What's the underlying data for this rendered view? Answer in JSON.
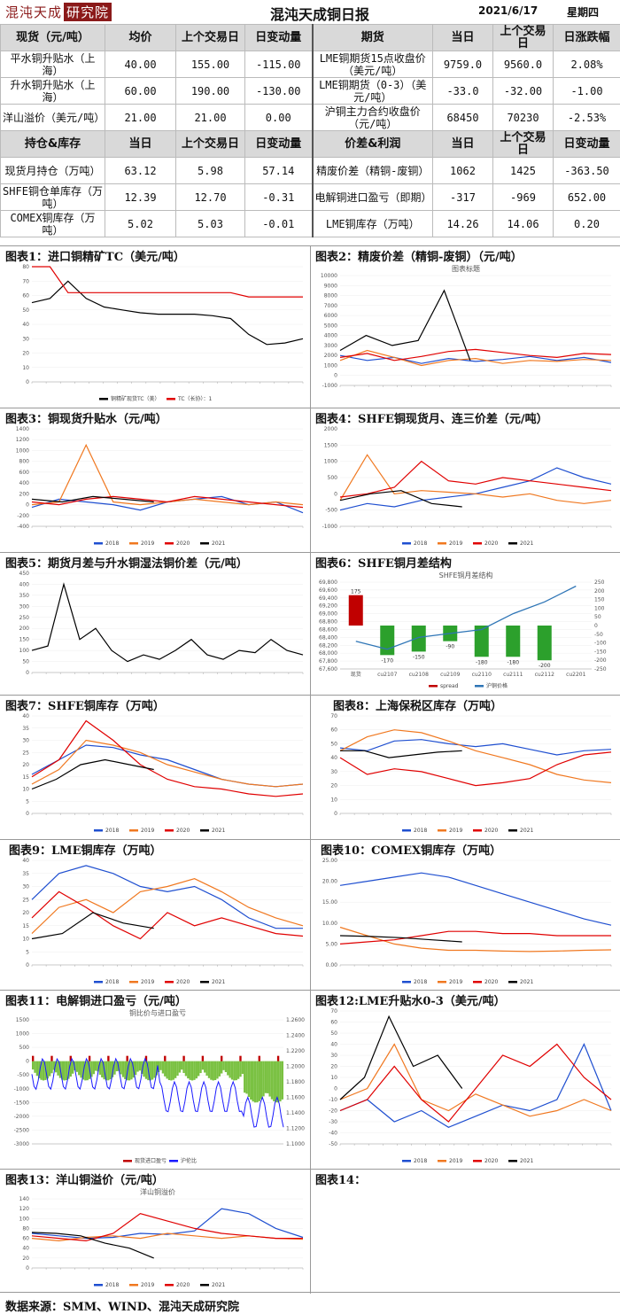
{
  "header": {
    "logo_text": "混沌天成",
    "logo_box": "研究院",
    "title": "混沌天成铜日报",
    "date": "2021/6/17",
    "weekday": "星期四"
  },
  "table1": {
    "left_headers": [
      "现货（元/吨）",
      "均价",
      "上个交易日",
      "日变动量"
    ],
    "right_headers": [
      "期货",
      "当日",
      "上个交易日",
      "日涨跌幅"
    ],
    "rows": [
      {
        "l": [
          "平水铜升贴水（上海）",
          "40.00",
          "155.00",
          "-115.00"
        ],
        "r": [
          "LME铜期货15点收盘价（美元/吨）",
          "9759.0",
          "9560.0",
          "2.08%"
        ]
      },
      {
        "l": [
          "升水铜升贴水（上海）",
          "60.00",
          "190.00",
          "-130.00"
        ],
        "r": [
          "LME铜期货（0-3）（美元/吨）",
          "-33.0",
          "-32.00",
          "-1.00"
        ]
      },
      {
        "l": [
          "洋山溢价（美元/吨）",
          "21.00",
          "21.00",
          "0.00"
        ],
        "r": [
          "沪铜主力合约收盘价（元/吨）",
          "68450",
          "70230",
          "-2.53%"
        ]
      }
    ]
  },
  "table2": {
    "left_headers": [
      "持仓&库存",
      "当日",
      "上个交易日",
      "日变动量"
    ],
    "right_headers": [
      "价差&利润",
      "当日",
      "上个交易日",
      "日变动量"
    ],
    "rows": [
      {
        "l": [
          "现货月持仓（万吨）",
          "63.12",
          "5.98",
          "57.14"
        ],
        "r": [
          "精废价差（精铜-废铜）",
          "1062",
          "1425",
          "-363.50"
        ]
      },
      {
        "l": [
          "SHFE铜仓单库存（万吨）",
          "12.39",
          "12.70",
          "-0.31"
        ],
        "r": [
          "电解铜进口盈亏（即期）",
          "-317",
          "-969",
          "652.00"
        ]
      },
      {
        "l": [
          "COMEX铜库存（万吨）",
          "5.02",
          "5.03",
          "-0.01"
        ],
        "r": [
          "LME铜库存（万吨）",
          "14.26",
          "14.06",
          "0.20"
        ]
      }
    ]
  },
  "charts": {
    "c1": "图表1：进口铜精矿TC（美元/吨）",
    "c2": "图表2：精废价差（精铜-废铜）（元/吨）",
    "c3": "图表3：铜现货升贴水（元/吨）",
    "c4": "图表4：SHFE铜现货月、连三价差（元/吨）",
    "c5": "图表5：期货月差与升水铜湿法铜价差（元/吨）",
    "c6": "图表6：SHFE铜月差结构",
    "c7": "图表7：SHFE铜库存（万吨）",
    "c8": "图表8：上海保税区库存（万吨）",
    "c9": "图表9：LME铜库存（万吨）",
    "c10": "图表10：COMEX铜库存（万吨）",
    "c11": "图表11：电解铜进口盈亏（元/吨）",
    "c12": "图表12:LME升贴水0-3（美元/吨）",
    "c13": "图表13：洋山铜溢价（元/吨）",
    "c14": "图表14："
  },
  "chart_data": [
    {
      "id": "c1",
      "type": "line",
      "yticks": [
        "80",
        "70",
        "60",
        "50",
        "40",
        "30",
        "20",
        "10",
        "0"
      ],
      "ylim": [
        0,
        80
      ],
      "legend": [
        "铜精矿现货TC（美）",
        "TC（长协）：1"
      ],
      "colors": [
        "#000000",
        "#e00000"
      ],
      "series": [
        {
          "values": [
            55,
            58,
            70,
            58,
            52,
            50,
            48,
            47,
            47,
            47,
            46,
            44,
            33,
            26,
            27,
            30
          ]
        },
        {
          "values": [
            80,
            80,
            62,
            62,
            62,
            62,
            62,
            62,
            62,
            62,
            62,
            62,
            59,
            59,
            59,
            59
          ]
        }
      ]
    },
    {
      "id": "c2",
      "type": "line",
      "subtitle": "图表标题",
      "yticks": [
        "10000",
        "9000",
        "8000",
        "7000",
        "6000",
        "5000",
        "4000",
        "3000",
        "2000",
        "1000",
        "0",
        "-1000"
      ],
      "ylim": [
        -1000,
        10000
      ],
      "colors": [
        "#1f4fd0",
        "#f07820",
        "#e00000",
        "#000000"
      ],
      "series": [
        {
          "values": [
            2000,
            1500,
            1800,
            1200,
            1700,
            1400,
            1600,
            1900,
            1500,
            1800,
            1300
          ]
        },
        {
          "values": [
            1500,
            2500,
            1800,
            1000,
            1500,
            1700,
            1200,
            1500,
            1400,
            1600,
            1500
          ]
        },
        {
          "values": [
            1800,
            2200,
            1500,
            1900,
            2400,
            2600,
            2300,
            2000,
            1800,
            2200,
            2100
          ]
        },
        {
          "values": [
            2500,
            4000,
            3000,
            3500,
            8500,
            1500
          ]
        }
      ]
    },
    {
      "id": "c3",
      "type": "line",
      "yticks": [
        "1400",
        "1200",
        "1000",
        "800",
        "600",
        "400",
        "200",
        "0",
        "-200",
        "-400"
      ],
      "ylim": [
        -400,
        1400
      ],
      "legend": [
        "2018",
        "2019",
        "2020",
        "2021"
      ],
      "colors": [
        "#1f4fd0",
        "#f07820",
        "#e00000",
        "#000000"
      ],
      "series": [
        {
          "values": [
            -50,
            100,
            50,
            0,
            -100,
            50,
            100,
            150,
            0,
            50,
            -150
          ]
        },
        {
          "values": [
            0,
            50,
            1100,
            50,
            0,
            50,
            100,
            50,
            0,
            50,
            0
          ]
        },
        {
          "values": [
            50,
            0,
            100,
            150,
            100,
            50,
            150,
            100,
            50,
            0,
            -50
          ]
        },
        {
          "values": [
            100,
            50,
            150,
            100,
            50
          ]
        }
      ]
    },
    {
      "id": "c4",
      "type": "line",
      "yticks": [
        "2000",
        "1500",
        "1000",
        "500",
        "0",
        "-500",
        "-1000"
      ],
      "ylim": [
        -1000,
        2000
      ],
      "legend": [
        "2018",
        "2019",
        "2020",
        "2021"
      ],
      "colors": [
        "#1f4fd0",
        "#f07820",
        "#e00000",
        "#000000"
      ],
      "series": [
        {
          "values": [
            -500,
            -300,
            -400,
            -200,
            -100,
            0,
            200,
            400,
            800,
            500,
            300
          ]
        },
        {
          "values": [
            -200,
            1200,
            0,
            100,
            50,
            0,
            -100,
            0,
            -200,
            -300,
            -200
          ]
        },
        {
          "values": [
            -100,
            0,
            200,
            1000,
            400,
            300,
            500,
            400,
            300,
            200,
            100
          ]
        },
        {
          "values": [
            -200,
            0,
            100,
            -300,
            -400
          ]
        }
      ]
    },
    {
      "id": "c5",
      "type": "line",
      "yticks": [
        "450",
        "400",
        "350",
        "300",
        "250",
        "200",
        "150",
        "100",
        "50",
        "0"
      ],
      "ylim": [
        0,
        450
      ],
      "colors": [
        "#000000"
      ],
      "series": [
        {
          "values": [
            100,
            120,
            400,
            150,
            200,
            100,
            50,
            80,
            60,
            100,
            150,
            80,
            60,
            100,
            90,
            150,
            100,
            80
          ]
        }
      ]
    },
    {
      "id": "c6",
      "type": "bar-line",
      "subtitle": "SHFE铜月差结构",
      "categories": [
        "现货",
        "cu2107",
        "cu2108",
        "cu2109",
        "cu2110",
        "cu2111",
        "cu2112",
        "cu2201"
      ],
      "bar_values": [
        175,
        -170,
        -150,
        -90,
        -180,
        -180,
        -200,
        0
      ],
      "line_values": [
        68300,
        68100,
        68400,
        68500,
        68600,
        69000,
        69300,
        69700
      ],
      "yleft": [
        "69,800",
        "69,600",
        "69,400",
        "69,200",
        "69,000",
        "68,800",
        "68,600",
        "68,400",
        "68,200",
        "68,000",
        "67,800",
        "67,600"
      ],
      "yright": [
        "250",
        "200",
        "150",
        "100",
        "50",
        "0",
        "-50",
        "-100",
        "-150",
        "-200",
        "-250"
      ],
      "legend": [
        "spread",
        "沪铜价格"
      ],
      "colors": [
        "#c00000",
        "#2ca02c",
        "#2e75b6"
      ]
    },
    {
      "id": "c7",
      "type": "line",
      "yticks": [
        "40",
        "35",
        "30",
        "25",
        "20",
        "15",
        "10",
        "5",
        "0"
      ],
      "ylim": [
        0,
        40
      ],
      "legend": [
        "2018",
        "2019",
        "2020",
        "2021"
      ],
      "colors": [
        "#1f4fd0",
        "#f07820",
        "#e00000",
        "#000000"
      ],
      "series": [
        {
          "values": [
            16,
            22,
            28,
            27,
            24,
            22,
            18,
            14,
            12,
            11,
            12
          ]
        },
        {
          "values": [
            12,
            18,
            30,
            28,
            25,
            20,
            17,
            14,
            12,
            11,
            12
          ]
        },
        {
          "values": [
            15,
            22,
            38,
            30,
            20,
            14,
            11,
            10,
            8,
            7,
            8
          ]
        },
        {
          "values": [
            10,
            14,
            20,
            22,
            20,
            18
          ]
        }
      ]
    },
    {
      "id": "c8",
      "type": "line",
      "yticks": [
        "70",
        "60",
        "50",
        "40",
        "30",
        "20",
        "10",
        "0"
      ],
      "ylim": [
        0,
        70
      ],
      "legend": [
        "2018",
        "2019",
        "2020",
        "2021"
      ],
      "colors": [
        "#1f4fd0",
        "#f07820",
        "#e00000",
        "#000000"
      ],
      "series": [
        {
          "values": [
            47,
            45,
            52,
            53,
            50,
            48,
            50,
            46,
            42,
            45,
            46
          ]
        },
        {
          "values": [
            45,
            55,
            60,
            58,
            52,
            45,
            40,
            35,
            28,
            24,
            22
          ]
        },
        {
          "values": [
            40,
            28,
            32,
            30,
            25,
            20,
            22,
            25,
            35,
            42,
            44
          ]
        },
        {
          "values": [
            45,
            45,
            40,
            42,
            44,
            45
          ]
        }
      ]
    },
    {
      "id": "c9",
      "type": "line",
      "yticks": [
        "40",
        "35",
        "30",
        "25",
        "20",
        "15",
        "10",
        "5",
        "0"
      ],
      "ylim": [
        0,
        40
      ],
      "legend": [
        "2018",
        "2019",
        "2020",
        "2021"
      ],
      "colors": [
        "#1f4fd0",
        "#f07820",
        "#e00000",
        "#000000"
      ],
      "series": [
        {
          "values": [
            25,
            35,
            38,
            35,
            30,
            28,
            30,
            25,
            18,
            14,
            14
          ]
        },
        {
          "values": [
            12,
            22,
            25,
            20,
            28,
            30,
            33,
            28,
            22,
            18,
            15
          ]
        },
        {
          "values": [
            18,
            28,
            22,
            15,
            10,
            20,
            15,
            18,
            15,
            12,
            11
          ]
        },
        {
          "values": [
            10,
            12,
            20,
            16,
            14
          ]
        }
      ]
    },
    {
      "id": "c10",
      "type": "line",
      "yticks": [
        "25.00",
        "20.00",
        "15.00",
        "10.00",
        "5.00",
        "0.00"
      ],
      "ylim": [
        0,
        25
      ],
      "legend": [
        "2018",
        "2019",
        "2020",
        "2021"
      ],
      "colors": [
        "#1f4fd0",
        "#f07820",
        "#e00000",
        "#000000"
      ],
      "series": [
        {
          "values": [
            19,
            20,
            21,
            22,
            21,
            19,
            17,
            15,
            13,
            11,
            9.5
          ]
        },
        {
          "values": [
            9,
            7,
            5,
            4,
            3.5,
            3.5,
            3.3,
            3.2,
            3.3,
            3.5,
            3.6
          ]
        },
        {
          "values": [
            5,
            5.5,
            6,
            7,
            8,
            8,
            7.5,
            7.5,
            7,
            7,
            7
          ]
        },
        {
          "values": [
            7,
            6.8,
            6.5,
            6,
            5.5
          ]
        }
      ]
    },
    {
      "id": "c11",
      "type": "bar-line",
      "subtitle": "铜比价与进口盈亏",
      "yleft": [
        "1500",
        "1000",
        "500",
        "0",
        "-500",
        "-1000",
        "-1500",
        "-2000",
        "-2500",
        "-3000"
      ],
      "yright": [
        "1.2600",
        "1.2400",
        "1.2200",
        "1.2000",
        "1.1800",
        "1.1600",
        "1.1400",
        "1.1200",
        "1.1000"
      ],
      "legend": [
        "现货进口盈亏",
        "沪伦比"
      ],
      "colors": [
        "#7ac142",
        "#c00000",
        "#1a1aff"
      ]
    },
    {
      "id": "c12",
      "type": "line",
      "yticks": [
        "70",
        "60",
        "50",
        "40",
        "30",
        "20",
        "10",
        "0",
        "-10",
        "-20",
        "-30",
        "-40",
        "-50"
      ],
      "ylim": [
        -50,
        70
      ],
      "legend": [
        "2018",
        "2019",
        "2020",
        "2021"
      ],
      "colors": [
        "#1f4fd0",
        "#f07820",
        "#e00000",
        "#000000"
      ],
      "series": [
        {
          "values": [
            -20,
            -10,
            -30,
            -20,
            -35,
            -25,
            -15,
            -20,
            -10,
            40,
            -20
          ]
        },
        {
          "values": [
            -10,
            0,
            40,
            -10,
            -20,
            -5,
            -15,
            -25,
            -20,
            -10,
            -20
          ]
        },
        {
          "values": [
            -20,
            -10,
            20,
            -10,
            -30,
            0,
            30,
            20,
            40,
            10,
            -10
          ]
        },
        {
          "values": [
            -10,
            10,
            65,
            20,
            30,
            0
          ]
        }
      ]
    },
    {
      "id": "c13",
      "type": "line",
      "subtitle": "洋山铜溢价",
      "yticks": [
        "140",
        "120",
        "100",
        "80",
        "60",
        "40",
        "20",
        "0"
      ],
      "ylim": [
        0,
        140
      ],
      "legend": [
        "2018",
        "2019",
        "2020",
        "2021"
      ],
      "colors": [
        "#1f4fd0",
        "#f07820",
        "#e00000",
        "#000000"
      ],
      "series": [
        {
          "values": [
            70,
            65,
            60,
            62,
            70,
            68,
            75,
            120,
            110,
            80,
            62
          ]
        },
        {
          "values": [
            60,
            55,
            62,
            65,
            60,
            70,
            65,
            60,
            65,
            60,
            58
          ]
        },
        {
          "values": [
            65,
            60,
            55,
            70,
            110,
            95,
            80,
            70,
            65,
            60,
            60
          ]
        },
        {
          "values": [
            72,
            70,
            65,
            50,
            40,
            20
          ]
        }
      ]
    }
  ],
  "footer": "数据来源：SMM、WIND、混沌天成研究院"
}
